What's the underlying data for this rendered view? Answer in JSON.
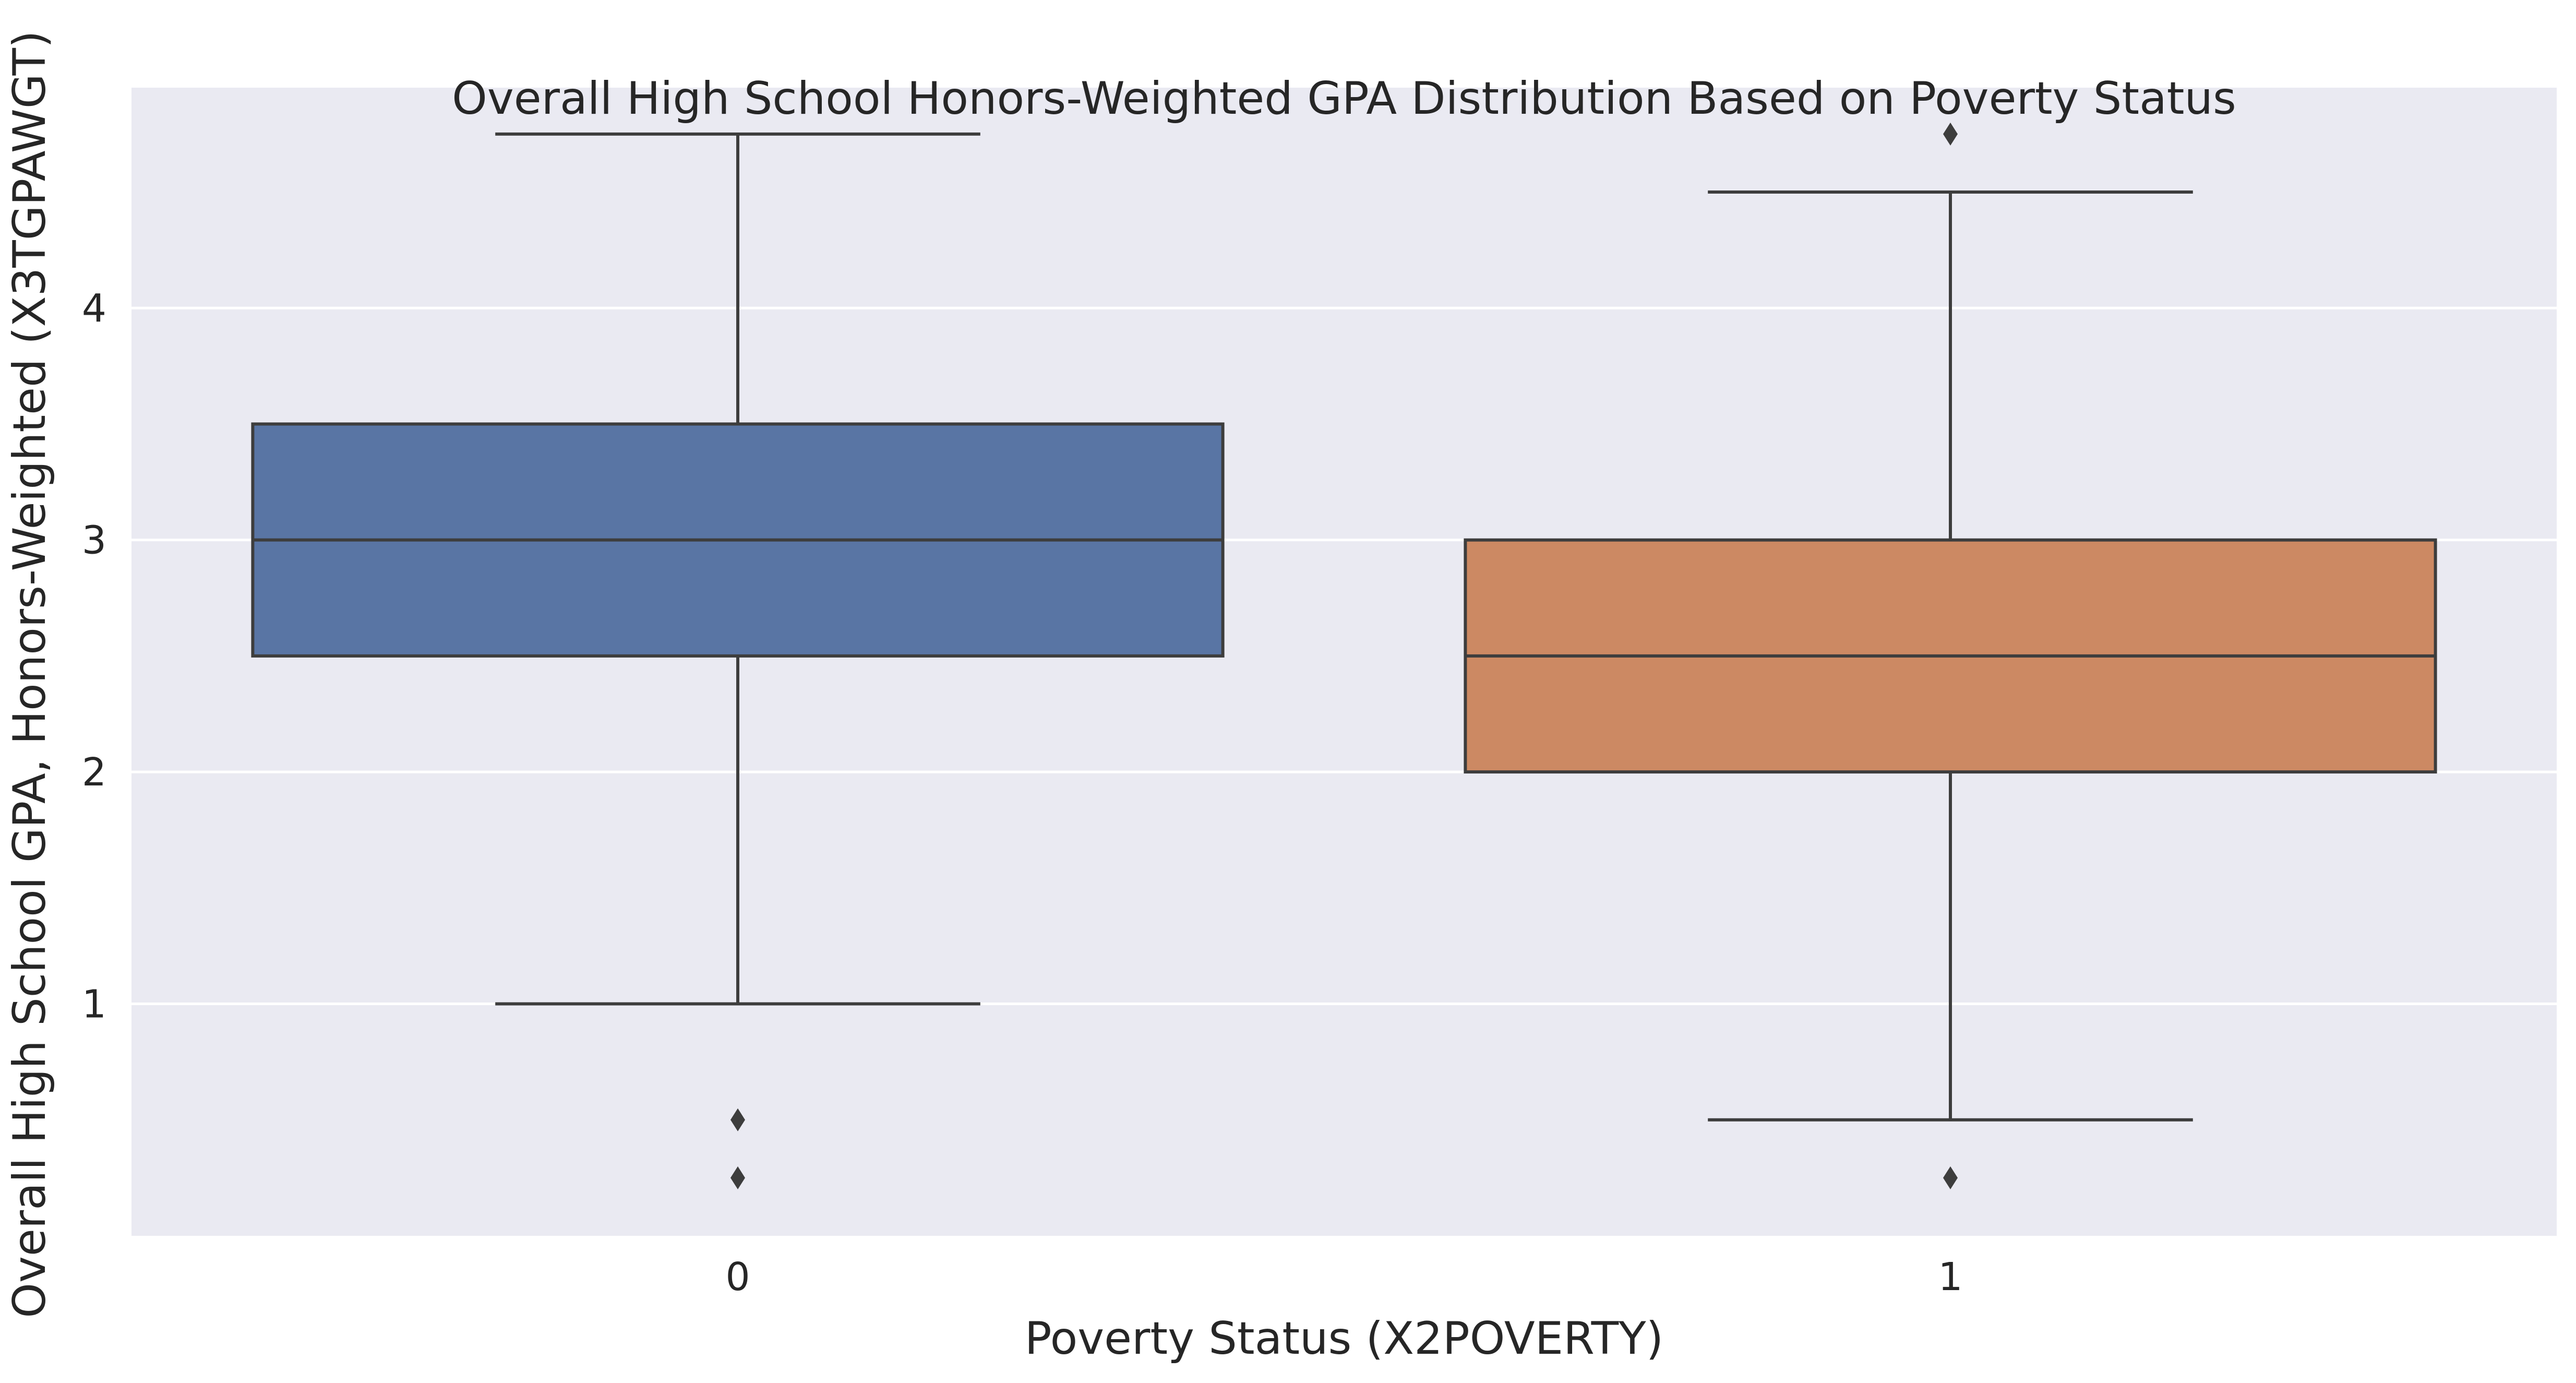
{
  "chart_data": {
    "type": "box",
    "title": "Overall High School Honors-Weighted GPA Distribution Based on Poverty Status",
    "xlabel": "Poverty Status (X2POVERTY)",
    "ylabel": "Overall High School GPA, Honors-Weighted (X3TGPAWGT)",
    "ylim": [
      0.0,
      4.95
    ],
    "yticks": [
      1,
      2,
      3,
      4
    ],
    "categories": [
      "0",
      "1"
    ],
    "grid": true,
    "boxes": [
      {
        "category": "0",
        "whisker_low": 1.0,
        "q1": 2.5,
        "median": 3.0,
        "q3": 3.5,
        "whisker_high": 4.75,
        "outliers": [
          0.5,
          0.25
        ],
        "color": "#5975a4"
      },
      {
        "category": "1",
        "whisker_low": 0.5,
        "q1": 2.0,
        "median": 2.5,
        "q3": 3.0,
        "whisker_high": 4.5,
        "outliers": [
          4.75,
          0.25
        ],
        "color": "#cc8963"
      }
    ],
    "colors": {
      "background": "#eaeaf2",
      "grid": "#ffffff",
      "line": "#3d3d3d"
    }
  }
}
